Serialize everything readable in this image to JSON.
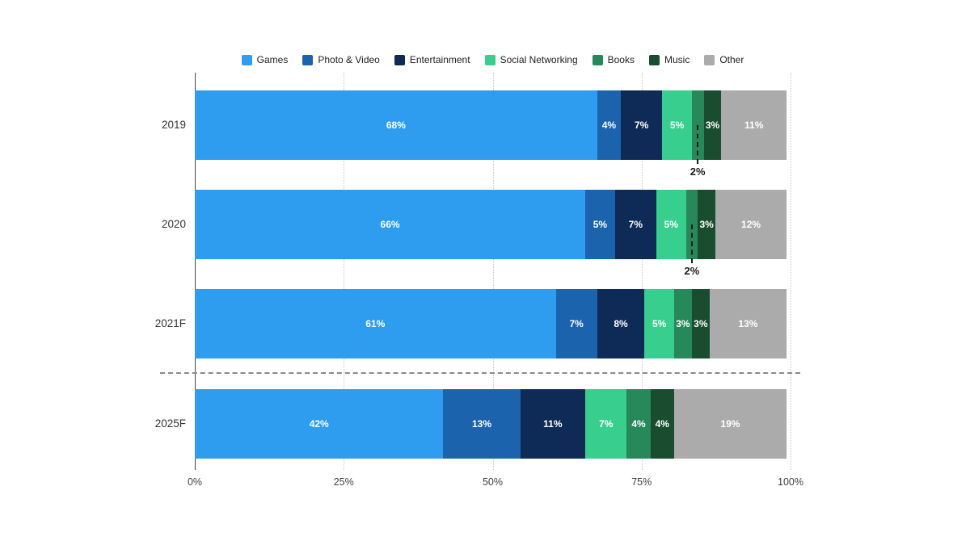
{
  "page": {
    "background": "#ffffff"
  },
  "chart_data": {
    "type": "bar",
    "stacked": true,
    "orientation": "horizontal",
    "title": "",
    "categories": [
      "2019",
      "2020",
      "2021F",
      "2025F"
    ],
    "series": [
      {
        "name": "Games",
        "color": "#2E9DF0",
        "values": [
          68,
          66,
          61,
          42
        ]
      },
      {
        "name": "Photo & Video",
        "color": "#1C63AD",
        "values": [
          4,
          5,
          7,
          13
        ]
      },
      {
        "name": "Entertainment",
        "color": "#0E2A56",
        "values": [
          7,
          7,
          8,
          11
        ]
      },
      {
        "name": "Social Networking",
        "color": "#38CE8E",
        "values": [
          5,
          5,
          5,
          7
        ]
      },
      {
        "name": "Books",
        "color": "#27885A",
        "values": [
          2,
          2,
          3,
          4
        ]
      },
      {
        "name": "Music",
        "color": "#1A4D30",
        "values": [
          3,
          3,
          3,
          4
        ]
      },
      {
        "name": "Other",
        "color": "#ABABAB",
        "values": [
          11,
          12,
          13,
          19
        ]
      }
    ],
    "value_label_format": "{v}%",
    "x_ticks": [
      {
        "label": "0%",
        "value": 0
      },
      {
        "label": "25%",
        "value": 25
      },
      {
        "label": "50%",
        "value": 50
      },
      {
        "label": "75%",
        "value": 75
      },
      {
        "label": "100%",
        "value": 100
      }
    ],
    "xlim": [
      0,
      100
    ],
    "grid": "dotted-vertical",
    "legend_position": "top",
    "callouts": [
      {
        "category": "2019",
        "series": "Books",
        "label": "2%"
      },
      {
        "category": "2020",
        "series": "Books",
        "label": "2%"
      }
    ],
    "forecast_separator": {
      "after_category": "2021F",
      "style": "dashed"
    }
  }
}
